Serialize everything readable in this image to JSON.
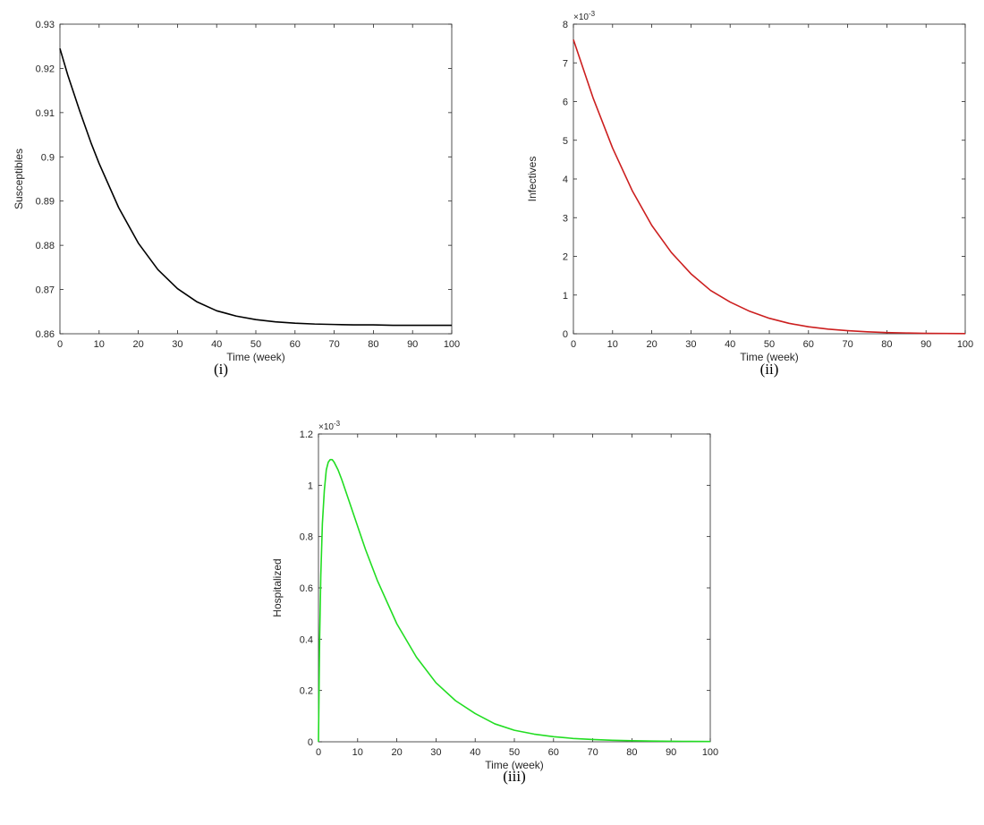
{
  "chart_data": [
    {
      "type": "line",
      "panel_label": "(i)",
      "xlabel": "Time (week)",
      "ylabel": "Susceptibles",
      "xlim": [
        0,
        100
      ],
      "ylim": [
        0.86,
        0.93
      ],
      "xticks": [
        0,
        10,
        20,
        30,
        40,
        50,
        60,
        70,
        80,
        90,
        100
      ],
      "yticks": [
        0.86,
        0.87,
        0.88,
        0.89,
        0.9,
        0.91,
        0.92,
        0.93
      ],
      "ytick_labels": [
        "0.86",
        "0.87",
        "0.88",
        "0.89",
        "0.9",
        "0.91",
        "0.92",
        "0.93"
      ],
      "y_exponent": "",
      "grid": false,
      "color": "#000000",
      "x": [
        0,
        2,
        5,
        8,
        10,
        15,
        20,
        25,
        30,
        35,
        40,
        45,
        50,
        55,
        60,
        65,
        70,
        75,
        80,
        85,
        90,
        95,
        100
      ],
      "y": [
        0.9245,
        0.9185,
        0.9105,
        0.903,
        0.8985,
        0.8885,
        0.8805,
        0.8745,
        0.8702,
        0.8672,
        0.8652,
        0.864,
        0.8632,
        0.8627,
        0.8624,
        0.8622,
        0.8621,
        0.862,
        0.862,
        0.8619,
        0.8619,
        0.8619,
        0.8619
      ]
    },
    {
      "type": "line",
      "panel_label": "(ii)",
      "xlabel": "Time (week)",
      "ylabel": "Infectives",
      "xlim": [
        0,
        100
      ],
      "ylim": [
        0,
        0.008
      ],
      "xticks": [
        0,
        10,
        20,
        30,
        40,
        50,
        60,
        70,
        80,
        90,
        100
      ],
      "yticks": [
        0,
        0.001,
        0.002,
        0.003,
        0.004,
        0.005,
        0.006,
        0.007,
        0.008
      ],
      "ytick_labels": [
        "0",
        "1",
        "2",
        "3",
        "4",
        "5",
        "6",
        "7",
        "8"
      ],
      "y_exponent": "-3",
      "grid": false,
      "color": "#cc1f1f",
      "x": [
        0,
        5,
        10,
        15,
        20,
        25,
        30,
        35,
        40,
        45,
        50,
        55,
        60,
        65,
        70,
        75,
        80,
        85,
        90,
        95,
        100
      ],
      "y": [
        0.0076,
        0.0061,
        0.0048,
        0.0037,
        0.0028,
        0.0021,
        0.00155,
        0.00112,
        0.00082,
        0.00058,
        0.0004,
        0.00027,
        0.00018,
        0.00012,
        8e-05,
        5e-05,
        3e-05,
        2e-05,
        1e-05,
        8e-06,
        5e-06
      ]
    },
    {
      "type": "line",
      "panel_label": "(iii)",
      "xlabel": "Time (week)",
      "ylabel": "Hospitalized",
      "xlim": [
        0,
        100
      ],
      "ylim": [
        0,
        0.0012
      ],
      "xticks": [
        0,
        10,
        20,
        30,
        40,
        50,
        60,
        70,
        80,
        90,
        100
      ],
      "yticks": [
        0,
        0.0002,
        0.0004,
        0.0006,
        0.0008,
        0.001,
        0.0012
      ],
      "ytick_labels": [
        "0",
        "0.2",
        "0.4",
        "0.6",
        "0.8",
        "1",
        "1.2"
      ],
      "y_exponent": "-3",
      "grid": false,
      "color": "#22dd22",
      "x": [
        0,
        0.3,
        0.6,
        1,
        1.5,
        2,
        2.5,
        3,
        3.5,
        4,
        5,
        6,
        8,
        10,
        12,
        15,
        20,
        25,
        30,
        35,
        40,
        45,
        50,
        55,
        60,
        65,
        70,
        75,
        80,
        85,
        90,
        95,
        100
      ],
      "y": [
        0,
        0.0004,
        0.00065,
        0.00085,
        0.00098,
        0.00106,
        0.00109,
        0.0011,
        0.0011,
        0.00109,
        0.00106,
        0.00102,
        0.00093,
        0.00084,
        0.00075,
        0.00063,
        0.00046,
        0.00033,
        0.00023,
        0.00016,
        0.00011,
        7e-05,
        4.5e-05,
        3e-05,
        2e-05,
        1.3e-05,
        9e-06,
        6e-06,
        4e-06,
        3e-06,
        2e-06,
        1.5e-06,
        1e-06
      ]
    }
  ]
}
